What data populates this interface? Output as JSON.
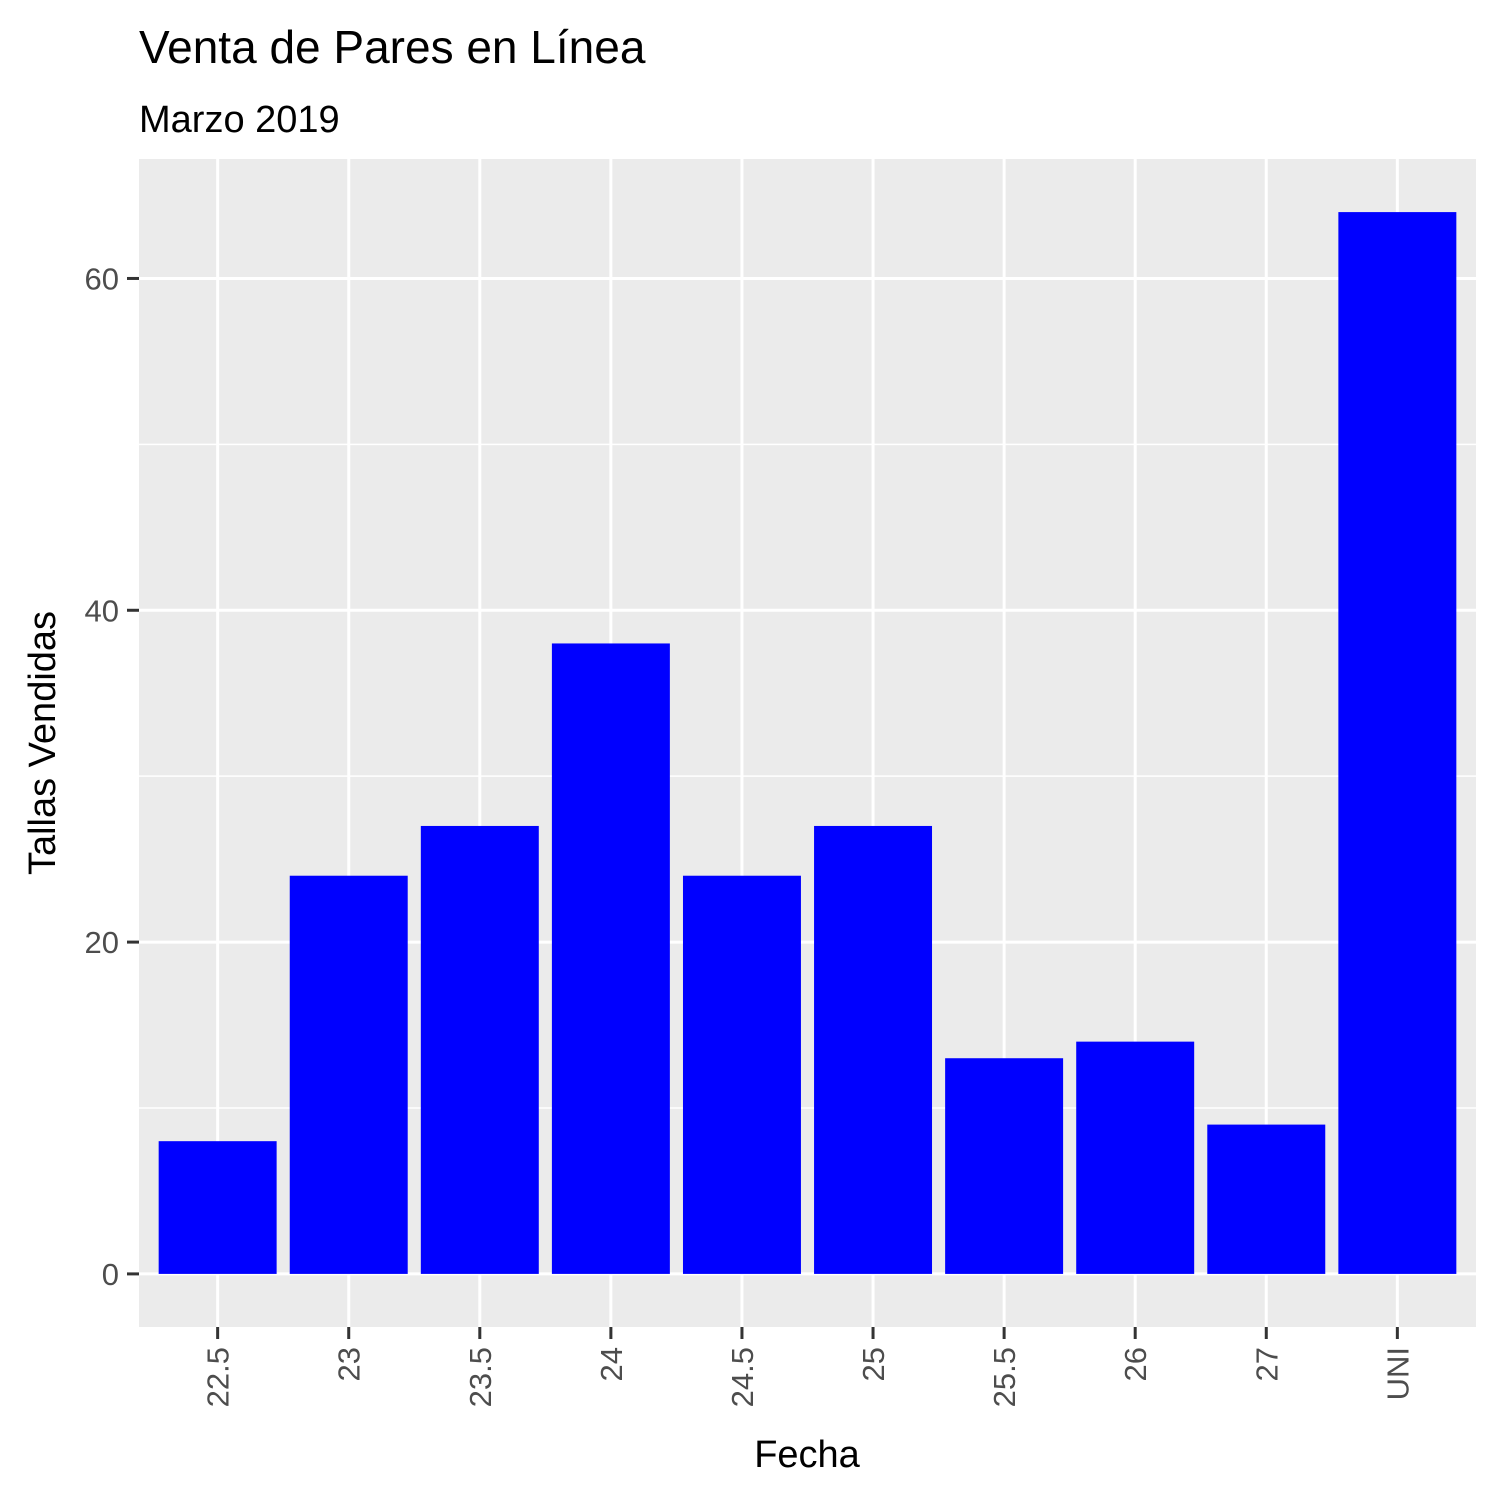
{
  "chart_data": {
    "type": "bar",
    "title": "Venta de Pares en Línea",
    "subtitle": "Marzo 2019",
    "xlabel": "Fecha",
    "ylabel": "Tallas Vendidas",
    "categories": [
      "22.5",
      "23",
      "23.5",
      "24",
      "24.5",
      "25",
      "25.5",
      "26",
      "27",
      "UNI"
    ],
    "values": [
      8,
      24,
      27,
      38,
      24,
      27,
      13,
      14,
      9,
      64
    ],
    "ylim": [
      -3.2,
      67.2
    ],
    "yticks": [
      0,
      20,
      40,
      60
    ],
    "yticks_minor": [
      10,
      30,
      50
    ],
    "grid": true,
    "bar_color": "#0000ff",
    "panel_color": "#ebebeb",
    "gridline_color": "#ffffff"
  }
}
